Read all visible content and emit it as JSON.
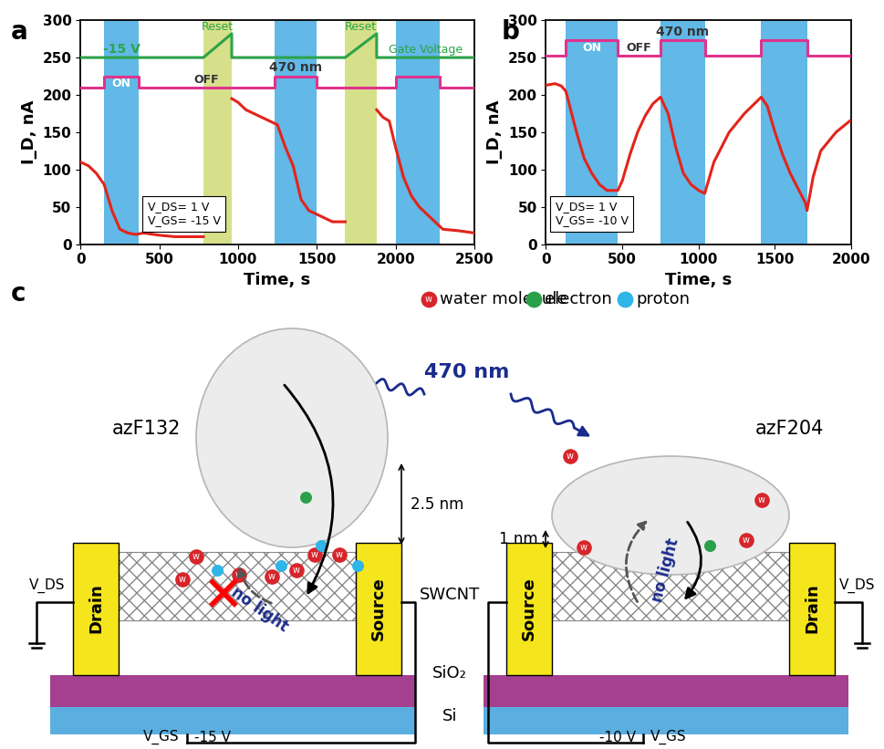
{
  "chart_data": [
    {
      "type": "line",
      "label": "a",
      "xlabel": "Time, s",
      "ylabel": "I_D, nA",
      "xlim": [
        0,
        2500
      ],
      "xticks": [
        0,
        500,
        1000,
        1500,
        2000,
        2500
      ],
      "ylim": [
        0,
        300
      ],
      "yticks": [
        0,
        50,
        100,
        150,
        200,
        250,
        300
      ],
      "series": [
        {
          "color": "#e3241b",
          "x": [
            0,
            50,
            100,
            150,
            200,
            250,
            300,
            350,
            400,
            500,
            600,
            700,
            780,
            870,
            960,
            1000,
            1050,
            1100,
            1150,
            1200,
            1250,
            1300,
            1350,
            1400,
            1450,
            1500,
            1550,
            1600,
            1680,
            1780,
            1880,
            1920,
            1960,
            2000,
            2050,
            2100,
            2150,
            2200,
            2250,
            2300,
            2400,
            2500
          ],
          "values": [
            110,
            105,
            95,
            80,
            45,
            20,
            15,
            13,
            15,
            12,
            10,
            10,
            10,
            null,
            195,
            190,
            180,
            175,
            170,
            165,
            160,
            130,
            105,
            60,
            45,
            40,
            35,
            30,
            30,
            null,
            180,
            170,
            165,
            130,
            90,
            65,
            50,
            40,
            30,
            20,
            18,
            15
          ]
        }
      ],
      "light": {
        "wavelength": "470 nm",
        "on_label": "ON",
        "off_label": "OFF",
        "on_intervals": [
          [
            150,
            370
          ],
          [
            1230,
            1500
          ],
          [
            2000,
            2280
          ]
        ],
        "off_level": 210,
        "on_level": 225,
        "color": "#e0338e"
      },
      "gate": {
        "label": "Gate Voltage",
        "voltage": "-15 V",
        "reset_label": "Reset",
        "reset_intervals": [
          [
            780,
            960
          ],
          [
            1680,
            1880
          ]
        ],
        "level": 250,
        "reset_peak": 282,
        "color": "#2ca34a"
      },
      "annotation": [
        "V_DS= 1 V",
        "V_GS= -15 V"
      ]
    },
    {
      "type": "line",
      "label": "b",
      "xlabel": "Time, s",
      "ylabel": "I_D, nA",
      "xlim": [
        0,
        2000
      ],
      "xticks": [
        0,
        500,
        1000,
        1500,
        2000
      ],
      "ylim": [
        0,
        300
      ],
      "yticks": [
        0,
        50,
        100,
        150,
        200,
        250,
        300
      ],
      "series": [
        {
          "color": "#e3241b",
          "x": [
            0,
            60,
            100,
            130,
            200,
            250,
            300,
            350,
            400,
            470,
            500,
            550,
            600,
            650,
            700,
            750,
            800,
            850,
            900,
            950,
            1000,
            1040,
            1100,
            1200,
            1300,
            1410,
            1450,
            1500,
            1550,
            1600,
            1650,
            1700,
            1710,
            1750,
            1800,
            1900,
            1990
          ],
          "values": [
            213,
            215,
            212,
            205,
            150,
            115,
            95,
            80,
            72,
            72,
            85,
            120,
            150,
            172,
            188,
            197,
            175,
            130,
            95,
            80,
            72,
            68,
            110,
            150,
            175,
            197,
            185,
            150,
            120,
            95,
            75,
            55,
            45,
            90,
            125,
            150,
            165
          ]
        }
      ],
      "light": {
        "wavelength": "470 nm",
        "on_label": "ON",
        "off_label": "OFF",
        "on_intervals": [
          [
            130,
            470
          ],
          [
            750,
            1040
          ],
          [
            1410,
            1710
          ]
        ],
        "off_level": 253,
        "on_level": 273,
        "color": "#e0338e"
      },
      "annotation": [
        "V_DS= 1 V",
        "V_GS= -10 V"
      ]
    }
  ],
  "diagram": {
    "label": "c",
    "wave": "470 nm",
    "water_symbol": "w",
    "legend": [
      {
        "name": "water molecule",
        "color": "#d7262b"
      },
      {
        "name": "electron",
        "color": "#2aa04a"
      },
      {
        "name": "proton",
        "color": "#2fb5e8"
      }
    ],
    "channel": "SWCNT",
    "oxide": "SiO₂",
    "substrate": "Si",
    "devices": [
      {
        "protein": "azF132",
        "height": "2.5 nm",
        "left_contact": "Drain",
        "right_contact": "Source",
        "drain_bias": "V_DS",
        "gate_bias": "V_GS",
        "gate_voltage": "-15 V",
        "dark_path": "no light",
        "dark_blocked": true
      },
      {
        "protein": "azF204",
        "height": "1 nm",
        "left_contact": "Source",
        "right_contact": "Drain",
        "drain_bias": "V_DS",
        "gate_bias": "V_GS",
        "gate_voltage": "-10 V",
        "dark_path": "no light",
        "dark_blocked": false
      }
    ]
  }
}
